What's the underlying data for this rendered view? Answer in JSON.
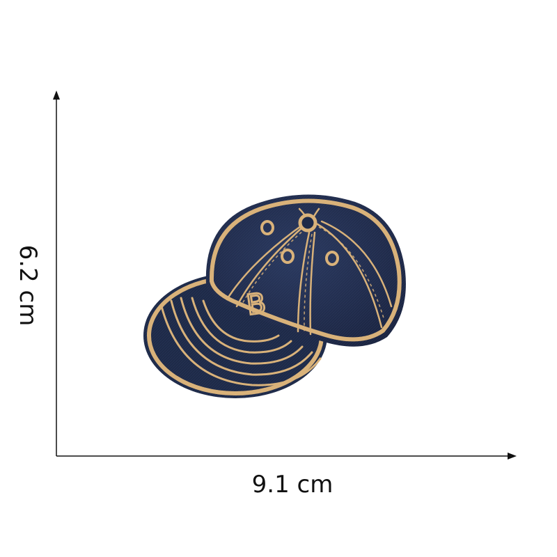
{
  "dimensions": {
    "width_label": "9.1 cm",
    "height_label": "6.2 cm"
  },
  "product": {
    "letter": "B"
  },
  "colors": {
    "denim": "#1f2b4a",
    "thread": "#d9b27a",
    "axis": "#111111"
  }
}
